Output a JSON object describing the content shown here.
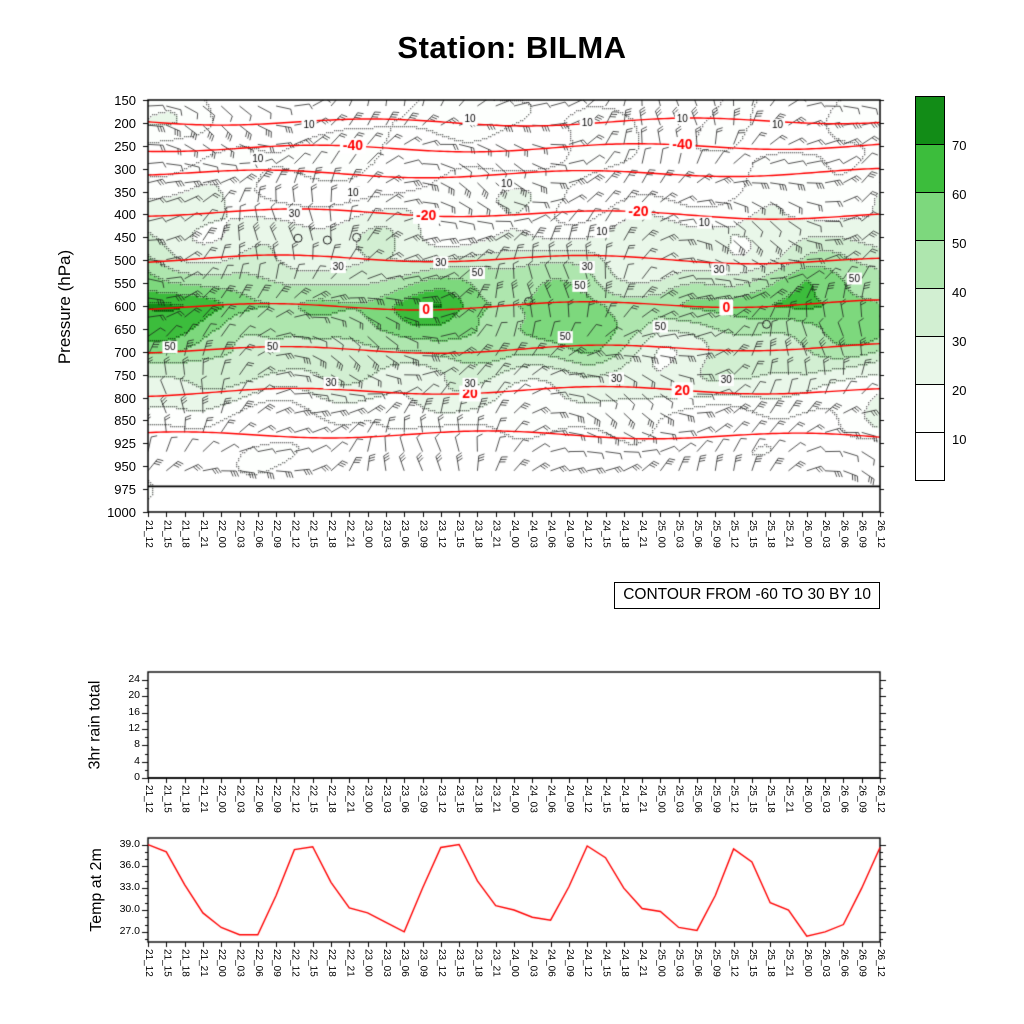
{
  "title": "Station: BILMA",
  "contour_note": "CONTOUR FROM -60 TO 30 BY 10",
  "time_labels": [
    "21_12",
    "21_15",
    "21_18",
    "21_21",
    "22_00",
    "22_03",
    "22_06",
    "22_09",
    "22_12",
    "22_15",
    "22_18",
    "22_21",
    "23_00",
    "23_03",
    "23_06",
    "23_09",
    "23_12",
    "23_15",
    "23_18",
    "23_21",
    "24_00",
    "24_03",
    "24_06",
    "24_09",
    "24_12",
    "24_15",
    "24_18",
    "24_21",
    "25_00",
    "25_03",
    "25_06",
    "25_09",
    "25_12",
    "25_15",
    "25_18",
    "25_21",
    "26_00",
    "26_03",
    "26_06",
    "26_09",
    "26_12"
  ],
  "chart_data": [
    {
      "id": "rh-wind-pressure-meteogram",
      "type": "heatmap",
      "ylabel": "Pressure (hPa)",
      "y_ticks": [
        150,
        200,
        250,
        300,
        350,
        400,
        450,
        500,
        550,
        600,
        650,
        700,
        750,
        800,
        850,
        925,
        950,
        975,
        1000
      ],
      "fill_levels": [
        10,
        20,
        30,
        40,
        50,
        60,
        70
      ],
      "fill_colors": [
        "#ffffff",
        "#fdfffd",
        "#e9f7e9",
        "#d2efd2",
        "#aee6ae",
        "#7dd87d",
        "#3cbd3c",
        "#128c17"
      ],
      "colorbar_labels": [
        70,
        60,
        50,
        40,
        30,
        20,
        10
      ],
      "overlays": [
        "wind-barbs",
        "red-temperature-contours",
        "black-rh-contours",
        "green-rh-shading"
      ],
      "surface_line_p": 972,
      "rh_grid": {
        "times": [
          "21_12",
          "22_00",
          "22_12",
          "23_00",
          "23_12",
          "24_00",
          "24_12",
          "25_00",
          "25_12",
          "26_00",
          "26_12"
        ],
        "levels": [
          150,
          200,
          250,
          300,
          350,
          400,
          450,
          500,
          550,
          600,
          650,
          700,
          750,
          800,
          850,
          925,
          1000
        ],
        "values": [
          [
            8,
            6,
            5,
            6,
            8,
            6,
            8,
            5,
            6,
            6,
            10
          ],
          [
            14,
            10,
            12,
            8,
            12,
            10,
            14,
            8,
            10,
            10,
            15
          ],
          [
            12,
            8,
            10,
            6,
            10,
            8,
            10,
            6,
            8,
            8,
            12
          ],
          [
            16,
            10,
            12,
            8,
            10,
            8,
            10,
            6,
            8,
            10,
            14
          ],
          [
            18,
            14,
            10,
            12,
            10,
            12,
            10,
            8,
            10,
            14,
            16
          ],
          [
            26,
            20,
            15,
            18,
            14,
            18,
            14,
            12,
            14,
            22,
            22
          ],
          [
            30,
            24,
            22,
            24,
            20,
            24,
            20,
            18,
            20,
            28,
            28
          ],
          [
            38,
            30,
            28,
            30,
            32,
            30,
            30,
            26,
            28,
            34,
            38
          ],
          [
            55,
            42,
            38,
            44,
            50,
            44,
            46,
            32,
            38,
            56,
            48
          ],
          [
            72,
            62,
            44,
            54,
            66,
            56,
            60,
            38,
            50,
            68,
            54
          ],
          [
            62,
            56,
            40,
            50,
            56,
            50,
            56,
            34,
            44,
            52,
            46
          ],
          [
            50,
            46,
            34,
            40,
            46,
            40,
            46,
            28,
            34,
            40,
            36
          ],
          [
            36,
            30,
            26,
            30,
            30,
            30,
            30,
            24,
            24,
            30,
            26
          ],
          [
            26,
            20,
            20,
            20,
            24,
            20,
            24,
            18,
            18,
            20,
            20
          ],
          [
            14,
            10,
            10,
            10,
            14,
            10,
            14,
            8,
            8,
            10,
            14
          ],
          [
            6,
            5,
            5,
            5,
            6,
            5,
            6,
            4,
            4,
            5,
            8
          ],
          [
            2,
            2,
            2,
            2,
            2,
            2,
            2,
            2,
            2,
            2,
            2
          ]
        ]
      },
      "temp_contours": [
        {
          "p": 195,
          "label": "",
          "label_fx": []
        },
        {
          "p": 252,
          "label": "-40",
          "label_fx": [
            0.28,
            0.73
          ]
        },
        {
          "p": 308,
          "label": "",
          "label_fx": []
        },
        {
          "p": 400,
          "label": "-20",
          "label_fx": [
            0.38,
            0.67
          ]
        },
        {
          "p": 500,
          "label": "",
          "label_fx": []
        },
        {
          "p": 598,
          "label": "0",
          "label_fx": [
            0.38,
            0.79
          ]
        },
        {
          "p": 692,
          "label": "",
          "label_fx": []
        },
        {
          "p": 788,
          "label": "20",
          "label_fx": [
            0.44,
            0.73
          ]
        },
        {
          "p": 902,
          "label": "",
          "label_fx": []
        }
      ],
      "rh_contour_labels": [
        {
          "t": "10",
          "fx": 0.22,
          "p": 205
        },
        {
          "t": "10",
          "fx": 0.44,
          "p": 192
        },
        {
          "t": "10",
          "fx": 0.6,
          "p": 200
        },
        {
          "t": "10",
          "fx": 0.73,
          "p": 190
        },
        {
          "t": "10",
          "fx": 0.86,
          "p": 205
        },
        {
          "t": "10",
          "fx": 0.15,
          "p": 278
        },
        {
          "t": "10",
          "fx": 0.28,
          "p": 352
        },
        {
          "t": "10",
          "fx": 0.49,
          "p": 332
        },
        {
          "t": "10",
          "fx": 0.76,
          "p": 418
        },
        {
          "t": "10",
          "fx": 0.62,
          "p": 438
        },
        {
          "t": "30",
          "fx": 0.2,
          "p": 398
        },
        {
          "t": "30",
          "fx": 0.26,
          "p": 515
        },
        {
          "t": "30",
          "fx": 0.4,
          "p": 505
        },
        {
          "t": "30",
          "fx": 0.6,
          "p": 515
        },
        {
          "t": "30",
          "fx": 0.78,
          "p": 520
        },
        {
          "t": "30",
          "fx": 0.25,
          "p": 768
        },
        {
          "t": "30",
          "fx": 0.44,
          "p": 770
        },
        {
          "t": "30",
          "fx": 0.64,
          "p": 758
        },
        {
          "t": "30",
          "fx": 0.79,
          "p": 762
        },
        {
          "t": "50",
          "fx": 0.45,
          "p": 528
        },
        {
          "t": "50",
          "fx": 0.59,
          "p": 556
        },
        {
          "t": "50",
          "fx": 0.965,
          "p": 540
        },
        {
          "t": "50",
          "fx": 0.03,
          "p": 690
        },
        {
          "t": "50",
          "fx": 0.17,
          "p": 688
        },
        {
          "t": "50",
          "fx": 0.57,
          "p": 668
        },
        {
          "t": "50",
          "fx": 0.7,
          "p": 645
        }
      ],
      "calm_circles": [
        {
          "fx": 0.205,
          "p": 452
        },
        {
          "fx": 0.245,
          "p": 456
        },
        {
          "fx": 0.285,
          "p": 450
        },
        {
          "fx": 0.52,
          "p": 590
        },
        {
          "fx": 0.845,
          "p": 640
        }
      ]
    },
    {
      "id": "rain-3hr-total",
      "type": "line",
      "ylabel": "3hr rain total",
      "y_ticks": [
        0,
        4,
        8,
        12,
        16,
        20,
        24
      ],
      "ylim": [
        0,
        26
      ],
      "line_color": "#000000",
      "values": [
        0,
        0,
        0,
        0,
        0,
        0,
        0,
        0,
        0,
        0,
        0,
        0,
        0,
        0,
        0,
        0,
        0,
        0,
        0,
        0,
        0,
        0,
        0,
        0,
        0,
        0,
        0,
        0,
        0,
        0,
        0,
        0,
        0,
        0,
        0,
        0,
        0,
        0,
        0,
        0,
        0
      ]
    },
    {
      "id": "temp-at-2m",
      "type": "line",
      "ylabel": "Temp at 2m",
      "y_tick_labels": [
        "27.0",
        "30.0",
        "33.0",
        "36.0",
        "39.0"
      ],
      "ylim": [
        25.6,
        39.9
      ],
      "line_color": "#ff0000",
      "values": [
        39.0,
        38.0,
        33.5,
        29.6,
        27.6,
        26.6,
        26.6,
        32.0,
        38.3,
        38.7,
        33.8,
        30.3,
        29.6,
        28.3,
        27.0,
        33.0,
        38.6,
        39.0,
        34.0,
        30.6,
        30.0,
        29.0,
        28.6,
        33.2,
        38.8,
        37.2,
        33.0,
        30.2,
        29.8,
        27.6,
        27.2,
        32.0,
        38.4,
        36.6,
        31.0,
        30.0,
        26.4,
        27.0,
        28.0,
        33.0,
        38.6
      ]
    }
  ]
}
